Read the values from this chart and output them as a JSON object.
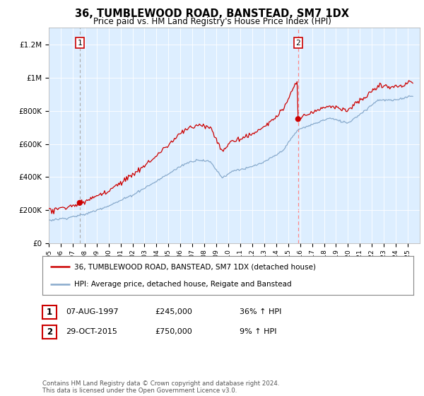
{
  "title": "36, TUMBLEWOOD ROAD, BANSTEAD, SM7 1DX",
  "subtitle": "Price paid vs. HM Land Registry's House Price Index (HPI)",
  "ylim": [
    0,
    1300000
  ],
  "yticks": [
    0,
    200000,
    400000,
    600000,
    800000,
    1000000,
    1200000
  ],
  "ytick_labels": [
    "£0",
    "£200K",
    "£400K",
    "£600K",
    "£800K",
    "£1M",
    "£1.2M"
  ],
  "sale1_year": 1997.58,
  "sale1_price": 245000,
  "sale1_label": "1",
  "sale2_year": 2015.83,
  "sale2_price": 750000,
  "sale2_label": "2",
  "red_line_color": "#cc0000",
  "blue_line_color": "#88aacc",
  "sale_dot_color": "#cc0000",
  "sale1_vline_color": "#aaaaaa",
  "sale2_vline_color": "#ff8888",
  "plot_bg_color": "#ddeeff",
  "legend_line1": "36, TUMBLEWOOD ROAD, BANSTEAD, SM7 1DX (detached house)",
  "legend_line2": "HPI: Average price, detached house, Reigate and Banstead",
  "table_row1": [
    "1",
    "07-AUG-1997",
    "£245,000",
    "36% ↑ HPI"
  ],
  "table_row2": [
    "2",
    "29-OCT-2015",
    "£750,000",
    "9% ↑ HPI"
  ],
  "footnote": "Contains HM Land Registry data © Crown copyright and database right 2024.\nThis data is licensed under the Open Government Licence v3.0.",
  "xmin": 1995,
  "xmax": 2026
}
